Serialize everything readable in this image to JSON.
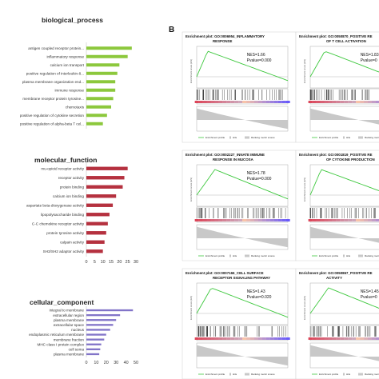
{
  "panel_b_letter": "B",
  "chart_data": [
    {
      "type": "bar",
      "orientation": "horizontal",
      "title": "biological_process",
      "color": "#8cc83c",
      "categories": [
        "antigen coupled receptor protein...",
        "inflammatory response",
        "calcium ion transport",
        "positive regulation of interleukin-8...",
        "plasma membrane organization end...",
        "immune response",
        "membrane receptor protein tyrosine...",
        "chemotaxis",
        "positive regulation of cytokine secretion",
        "positive regulation of alpha-beta T cel..."
      ],
      "values": [
        11,
        10,
        8,
        7.5,
        7,
        7,
        6.5,
        6,
        5,
        4
      ],
      "xlim": [
        0,
        12
      ],
      "xticks": []
    },
    {
      "type": "bar",
      "orientation": "horizontal",
      "title": "molecular_function",
      "color": "#b5313f",
      "categories": [
        "mu-opioid receptor activity",
        "receptor activity",
        "protein binding",
        "calcium ion binding",
        "aspartate beta-dioxygenase activity",
        "lipopolysaccharide binding",
        "C-C chemokine receptor activity",
        "protein tyrosine activity",
        "calpain activity",
        "SH3/SH2 adaptor activity"
      ],
      "values": [
        25,
        23,
        22,
        18,
        16,
        14,
        13,
        12,
        11,
        10
      ],
      "xlim": [
        0,
        30
      ],
      "xticks": [
        "0",
        "5",
        "10",
        "15",
        "20",
        "25",
        "30"
      ]
    },
    {
      "type": "bar",
      "orientation": "horizontal",
      "title": "cellular_component",
      "color": "#8274c8",
      "categories": [
        "integral to membrane",
        "extracellular region",
        "plasma membrane",
        "extracellular space",
        "nucleus",
        "endoplasmic reticulum membrane",
        "membrane fraction",
        "MHC class I protein complex",
        "cell soma",
        "plasma membrane"
      ],
      "values": [
        47,
        34,
        30,
        27,
        24,
        20,
        18,
        15,
        14,
        13
      ],
      "xlim": [
        0,
        50
      ],
      "xticks": [
        "0",
        "10",
        "20",
        "30",
        "40",
        "50"
      ]
    }
  ],
  "gsea_plots": [
    {
      "title1": "Enrichment plot: GO:0006954_INFLAMMATORY",
      "title2": "RESPONSE",
      "nes": "NES=1.66",
      "pvalue": "Pvalue=0.000",
      "ylabel": "Enrichment score (ES)"
    },
    {
      "title1": "Enrichment plot: GO:0050870_POSITIVE RE",
      "title2": "OF T CELL ACTIVATION",
      "nes": "NES=1.83",
      "pvalue": "Pvalue=0",
      "ylabel": "Enrichment score (ES)"
    },
    {
      "title1": "Enrichment plot: GO:0002227_INNATE IMMUNE",
      "title2": "RESPONSE IN MUCOSA",
      "nes": "NES=1.78",
      "pvalue": "Pvalue=0.000",
      "ylabel": "Enrichment score (ES)"
    },
    {
      "title1": "Enrichment plot: GO:0001819_POSITIVE RE",
      "title2": "OF CYTOKINE PRODUCTION",
      "nes": "",
      "pvalue": "",
      "ylabel": "Enrichment score (ES)"
    },
    {
      "title1": "Enrichment plot: GO:0007166_CELL SURFACE",
      "title2": "RECEPTOR SIGNALING PATHWAY",
      "nes": "NES=1.43",
      "pvalue": "Pvalue=0.020",
      "ylabel": "Enrichment score (ES)"
    },
    {
      "title1": "Enrichment plot: GO:0050867_POSITIVE RE",
      "title2": "ACTIVITY",
      "nes": "NES=1.45",
      "pvalue": "Pvalue=0",
      "ylabel": "Enrichment score (ES)"
    }
  ],
  "gsea_legend": {
    "es_label": "Enrichment profile",
    "hits_label": "Hits",
    "ranking_label": "Ranking metric scores"
  }
}
